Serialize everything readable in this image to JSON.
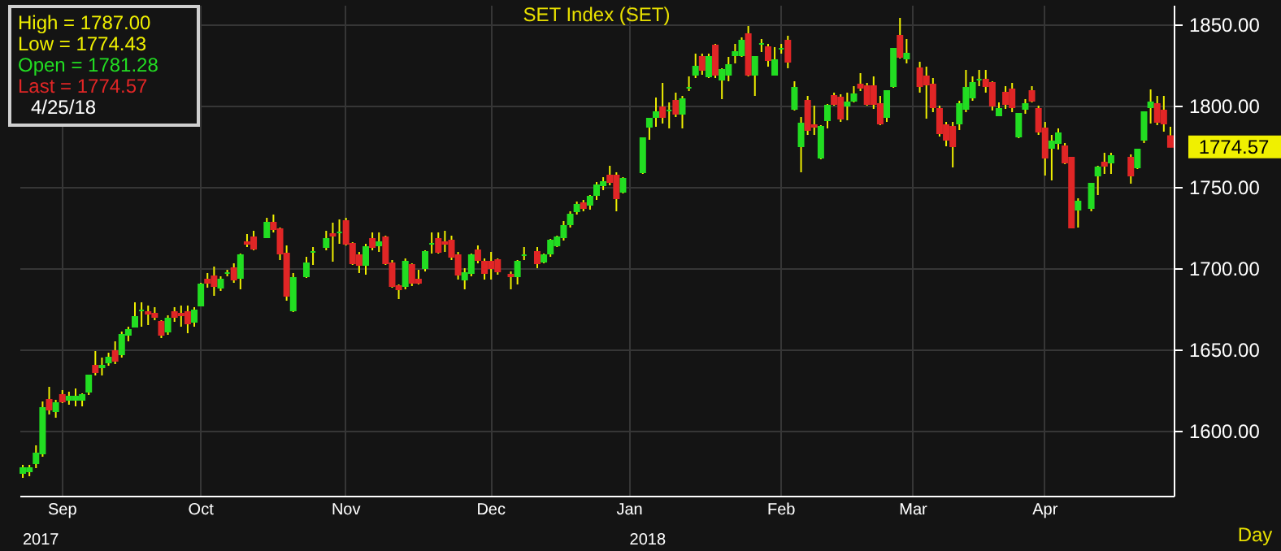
{
  "chart_data": {
    "type": "candlestick",
    "title": "SET Index (SET)",
    "categories": [
      null,
      null,
      null,
      null,
      null,
      null,
      "Sep",
      null,
      null,
      null,
      null,
      null,
      null,
      null,
      null,
      null,
      null,
      null,
      null,
      null,
      null,
      null,
      null,
      null,
      null,
      null,
      null,
      "Oct",
      null,
      null,
      null,
      null,
      null,
      null,
      null,
      null,
      null,
      null,
      null,
      null,
      null,
      null,
      null,
      null,
      null,
      null,
      null,
      null,
      null,
      "Nov",
      null,
      null,
      null,
      null,
      null,
      null,
      null,
      null,
      null,
      null,
      null,
      null,
      null,
      null,
      null,
      null,
      null,
      null,
      null,
      null,
      null,
      "Dec",
      null,
      null,
      null,
      null,
      null,
      null,
      null,
      null,
      null,
      null,
      null,
      null,
      null,
      null,
      null,
      null,
      null,
      null,
      null,
      null,
      "Jan",
      null,
      null,
      null,
      null,
      null,
      null,
      null,
      null,
      null,
      null,
      null,
      null,
      null,
      null,
      null,
      null,
      null,
      null,
      null,
      null,
      null,
      null,
      "Feb",
      null,
      null,
      null,
      null,
      null,
      null,
      null,
      null,
      null,
      null,
      null,
      null,
      null,
      null,
      null,
      null,
      null,
      null,
      null,
      "Mar",
      null,
      null,
      null,
      null,
      null,
      null,
      null,
      null,
      null,
      null,
      null,
      null,
      null,
      null,
      null,
      null,
      null,
      null,
      null,
      "Apr",
      null,
      null,
      null,
      null,
      null,
      null,
      null,
      null,
      null,
      null,
      null,
      null,
      null,
      null,
      null,
      null,
      null,
      null,
      null
    ],
    "ohlc": [
      [
        1574,
        1579,
        1571,
        1577
      ],
      [
        1575,
        1579,
        1572,
        1577
      ],
      [
        1580,
        1591,
        1577,
        1586
      ],
      [
        1586,
        1618,
        1584,
        1614
      ],
      [
        1619,
        1627,
        1610,
        1613
      ],
      [
        1612,
        1619,
        1608,
        1617
      ],
      [
        1622,
        1625,
        1617,
        1618
      ],
      [
        1619,
        1624,
        1616,
        1621
      ],
      [
        1619,
        1626,
        1615,
        1621
      ],
      [
        1619,
        1623,
        1615,
        1622
      ],
      [
        1624,
        1634,
        1622,
        1634
      ],
      [
        1640,
        1649,
        1634,
        1636
      ],
      [
        1639,
        1645,
        1634,
        1640
      ],
      [
        1642,
        1648,
        1640,
        1645
      ],
      [
        1649,
        1655,
        1641,
        1643
      ],
      [
        1647,
        1661,
        1645,
        1659
      ],
      [
        1659,
        1664,
        1655,
        1662
      ],
      [
        1664,
        1679,
        1664,
        1670
      ],
      [
        1674,
        1679,
        1664,
        1674
      ],
      [
        1673,
        1677,
        1665,
        1672
      ],
      [
        1672,
        1676,
        1668,
        1670
      ],
      [
        1667,
        1668,
        1657,
        1659
      ],
      [
        1661,
        1671,
        1659,
        1669
      ],
      [
        1673,
        1676,
        1667,
        1670
      ],
      [
        1672,
        1677,
        1664,
        1671
      ],
      [
        1673,
        1677,
        1660,
        1666
      ],
      [
        1667,
        1676,
        1664,
        1674
      ],
      [
        1677,
        1691,
        1677,
        1690
      ],
      [
        1693,
        1697,
        1688,
        1691
      ],
      [
        1695,
        1701,
        1683,
        1689
      ],
      [
        1688,
        1695,
        1686,
        1693
      ],
      [
        1697,
        1699,
        1695,
        1697
      ],
      [
        1700,
        1703,
        1691,
        1693
      ],
      [
        1694,
        1709,
        1687,
        1708
      ],
      [
        1716,
        1721,
        1713,
        1715
      ],
      [
        1719,
        1723,
        1711,
        1712
      ],
      null,
      [
        1719,
        1731,
        1719,
        1728
      ],
      [
        1728,
        1733,
        1722,
        1724
      ],
      [
        1724,
        1725,
        1705,
        1709
      ],
      [
        1709,
        1714,
        1680,
        1683
      ],
      [
        1674,
        1697,
        1673,
        1694
      ],
      null,
      [
        1695,
        1707,
        1694,
        1703
      ],
      [
        1710,
        1713,
        1702,
        1710
      ],
      null,
      [
        1713,
        1723,
        1711,
        1718
      ],
      [
        1721,
        1728,
        1704,
        1720
      ],
      [
        1722,
        1730,
        1715,
        1722
      ],
      [
        1729,
        1731,
        1714,
        1715
      ],
      [
        1715,
        1716,
        1702,
        1703
      ],
      [
        1708,
        1710,
        1697,
        1702
      ],
      [
        1702,
        1715,
        1696,
        1713
      ],
      [
        1718,
        1722,
        1711,
        1713
      ],
      [
        1714,
        1722,
        1710,
        1716
      ],
      [
        1719,
        1720,
        1702,
        1703
      ],
      [
        1703,
        1705,
        1688,
        1689
      ],
      [
        1689,
        1690,
        1681,
        1687
      ],
      [
        1689,
        1706,
        1687,
        1704
      ],
      [
        1702,
        1703,
        1689,
        1691
      ],
      [
        1693,
        1699,
        1690,
        1691
      ],
      [
        1700,
        1711,
        1698,
        1710
      ],
      [
        1715,
        1722,
        1709,
        1715
      ],
      [
        1718,
        1722,
        1709,
        1710
      ],
      [
        1716,
        1723,
        1710,
        1715
      ],
      [
        1717,
        1720,
        1705,
        1707
      ],
      [
        1708,
        1710,
        1693,
        1696
      ],
      [
        1693,
        1700,
        1687,
        1697
      ],
      [
        1697,
        1709,
        1695,
        1708
      ],
      [
        1711,
        1714,
        1703,
        1705
      ],
      [
        1704,
        1706,
        1693,
        1697
      ],
      [
        1704,
        1710,
        1693,
        1700
      ],
      [
        1705,
        1706,
        1696,
        1698
      ],
      null,
      [
        1696,
        1698,
        1687,
        1695
      ],
      [
        1695,
        1705,
        1690,
        1704
      ],
      [
        1708,
        1713,
        1705,
        1708
      ],
      null,
      [
        1710,
        1713,
        1700,
        1703
      ],
      [
        1704,
        1709,
        1703,
        1708
      ],
      [
        1709,
        1718,
        1707,
        1717
      ],
      [
        1714,
        1720,
        1713,
        1719
      ],
      [
        1719,
        1729,
        1717,
        1726
      ],
      [
        1727,
        1735,
        1725,
        1733
      ],
      [
        1735,
        1741,
        1733,
        1739
      ],
      [
        1740,
        1742,
        1735,
        1737
      ],
      [
        1739,
        1745,
        1736,
        1744
      ],
      [
        1745,
        1753,
        1742,
        1751
      ],
      [
        1751,
        1756,
        1748,
        1753
      ],
      [
        1757,
        1763,
        1751,
        1753
      ],
      [
        1757,
        1759,
        1735,
        1743
      ],
      [
        1747,
        1756,
        1746,
        1755
      ],
      null,
      null,
      [
        1759,
        1780,
        1758,
        1780
      ],
      [
        1787,
        1792,
        1779,
        1792
      ],
      [
        1793,
        1805,
        1787,
        1796
      ],
      [
        1799,
        1814,
        1789,
        1793
      ],
      [
        1797,
        1802,
        1786,
        1797
      ],
      [
        1803,
        1808,
        1793,
        1795
      ],
      [
        1795,
        1806,
        1786,
        1804
      ],
      [
        1811,
        1818,
        1809,
        1811
      ],
      [
        1819,
        1832,
        1817,
        1824
      ],
      [
        1830,
        1832,
        1819,
        1822
      ],
      [
        1818,
        1832,
        1817,
        1830
      ],
      [
        1837,
        1838,
        1817,
        1819
      ],
      [
        1816,
        1823,
        1804,
        1822
      ],
      [
        1819,
        1830,
        1815,
        1825
      ],
      [
        1831,
        1838,
        1826,
        1833
      ],
      [
        1831,
        1842,
        1830,
        1840
      ],
      [
        1844,
        1849,
        1818,
        1819
      ],
      [
        1819,
        1830,
        1806,
        1830
      ],
      [
        1838,
        1841,
        1833,
        1838
      ],
      [
        1836,
        1838,
        1824,
        1828
      ],
      [
        1819,
        1836,
        1819,
        1828
      ],
      [
        1835,
        1838,
        1832,
        1835
      ],
      [
        1840,
        1843,
        1823,
        1827
      ],
      [
        1798,
        1815,
        1797,
        1811
      ],
      [
        1775,
        1793,
        1759,
        1789
      ],
      [
        1803,
        1806,
        1782,
        1785
      ],
      [
        1788,
        1800,
        1782,
        1787
      ],
      [
        1768,
        1788,
        1767,
        1787
      ],
      [
        1791,
        1801,
        1786,
        1800
      ],
      [
        1806,
        1808,
        1800,
        1801
      ],
      [
        1805,
        1807,
        1790,
        1792
      ],
      [
        1800,
        1808,
        1791,
        1802
      ],
      [
        1803,
        1812,
        1802,
        1807
      ],
      [
        1813,
        1820,
        1809,
        1811
      ],
      [
        1812,
        1814,
        1800,
        1801
      ],
      [
        1812,
        1818,
        1798,
        1801
      ],
      [
        1801,
        1806,
        1788,
        1789
      ],
      [
        1793,
        1809,
        1790,
        1809
      ],
      [
        1812,
        1835,
        1811,
        1835
      ],
      [
        1843,
        1854,
        1829,
        1830
      ],
      [
        1829,
        1841,
        1826,
        1832
      ],
      null,
      [
        1823,
        1827,
        1808,
        1812
      ],
      [
        1818,
        1824,
        1792,
        1813
      ],
      [
        1813,
        1817,
        1796,
        1799
      ],
      [
        1798,
        1800,
        1781,
        1783
      ],
      [
        1788,
        1790,
        1775,
        1779
      ],
      [
        1787,
        1790,
        1762,
        1775
      ],
      [
        1789,
        1803,
        1785,
        1801
      ],
      [
        1798,
        1822,
        1796,
        1811
      ],
      [
        1805,
        1818,
        1803,
        1814
      ],
      [
        1816,
        1822,
        1812,
        1816
      ],
      [
        1816,
        1822,
        1808,
        1812
      ],
      [
        1814,
        1815,
        1797,
        1800
      ],
      [
        1794,
        1802,
        1794,
        1798
      ],
      [
        1808,
        1812,
        1798,
        1801
      ],
      [
        1810,
        1814,
        1796,
        1799
      ],
      [
        1781,
        1795,
        1780,
        1795
      ],
      [
        1798,
        1804,
        1795,
        1801
      ],
      [
        1809,
        1812,
        1802,
        1803
      ],
      [
        1798,
        1800,
        1782,
        1784
      ],
      [
        1786,
        1790,
        1757,
        1768
      ],
      [
        1774,
        1782,
        1754,
        1778
      ],
      [
        1777,
        1786,
        1773,
        1783
      ],
      [
        1775,
        1777,
        1764,
        1765
      ],
      [
        1768,
        1768,
        1725,
        1725
      ],
      [
        1736,
        1743,
        1725,
        1741
      ],
      null,
      [
        1737,
        1752,
        1735,
        1752
      ],
      [
        1757,
        1763,
        1745,
        1762
      ],
      [
        1765,
        1771,
        1758,
        1763
      ],
      [
        1765,
        1771,
        1758,
        1769
      ],
      null,
      null,
      [
        1768,
        1770,
        1752,
        1757
      ],
      [
        1762,
        1773,
        1761,
        1773
      ],
      [
        1779,
        1796,
        1777,
        1796
      ],
      [
        1799,
        1810,
        1789,
        1802
      ],
      [
        1801,
        1806,
        1788,
        1790
      ],
      [
        1797,
        1806,
        1784,
        1789
      ],
      [
        1781.28,
        1787.0,
        1774.43,
        1774.57
      ]
    ],
    "ylim": [
      1560,
      1862
    ],
    "yticks": [
      {
        "value": 1600,
        "label": "1600.00"
      },
      {
        "value": 1650,
        "label": "1650.00"
      },
      {
        "value": 1700,
        "label": "1700.00"
      },
      {
        "value": 1750,
        "label": "1750.00"
      },
      {
        "value": 1800,
        "label": "1800.00"
      },
      {
        "value": 1850,
        "label": "1850.00"
      }
    ],
    "grid": true,
    "annotations": [
      "High = 1787.00",
      "Low = 1774.43",
      "Open = 1781.28",
      "Last = 1774.57",
      "4/25/18",
      "1774.57",
      "2017",
      "2018",
      "Day"
    ]
  }
}
